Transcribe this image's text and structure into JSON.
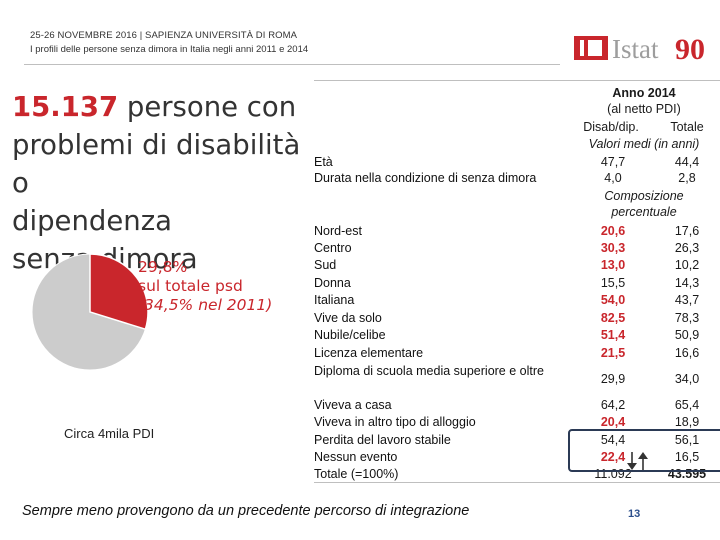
{
  "header": {
    "line1": "25-26 NOVEMBRE 2016 | SAPIENZA UNIVERSITÀ DI ROMA",
    "line2": "I profili delle persone senza dimora in Italia negli anni 2011 e 2014"
  },
  "logo": {
    "name": "Istat",
    "anniversary": "90",
    "brand_color": "#c9262c"
  },
  "title": {
    "number": "15.137",
    "line1_rest": " persone con",
    "line2": "problemi di disabilità o",
    "line3": "dipendenza",
    "line4": "senza dimora"
  },
  "pie": {
    "share_pct": 29.8,
    "label1": "29,8%",
    "label2": "sul totale psd",
    "label3": "(34,5% nel 2011)",
    "caption": "Circa  4mila PDI",
    "colors": {
      "highlight": "#c9262c",
      "rest": "#cccccc"
    }
  },
  "table": {
    "year": "Anno 2014",
    "subset": "(al netto PDI)",
    "col1": "Disab/dip.",
    "col2": "Totale",
    "section_means": "Valori medi (in anni)",
    "section_pct_1": "Composizione",
    "section_pct_2": "percentuale",
    "means": [
      {
        "label": "Età",
        "v1": "47,7",
        "v2": "44,4"
      },
      {
        "label": "Durata nella condizione di senza dimora",
        "v1": "4,0",
        "v2": "2,8"
      }
    ],
    "rows": [
      {
        "label": "Nord-est",
        "v1": "20,6",
        "v2": "17,6",
        "red": true
      },
      {
        "label": "Centro",
        "v1": "30,3",
        "v2": "26,3",
        "red": true
      },
      {
        "label": "Sud",
        "v1": "13,0",
        "v2": "10,2",
        "red": true
      },
      {
        "label": "Donna",
        "v1": "15,5",
        "v2": "14,3",
        "red": false
      },
      {
        "label": "Italiana",
        "v1": "54,0",
        "v2": "43,7",
        "red": true
      },
      {
        "label": "Vive da solo",
        "v1": "82,5",
        "v2": "78,3",
        "red": true
      },
      {
        "label": "Nubile/celibe",
        "v1": "51,4",
        "v2": "50,9",
        "red": true
      },
      {
        "label": "Licenza elementare",
        "v1": "21,5",
        "v2": "16,6",
        "red": true
      },
      {
        "label": "Diploma di scuola media superiore e oltre",
        "v1": "29,9",
        "v2": "34,0",
        "red": false
      },
      {
        "label": "Viveva a casa",
        "v1": "64,2",
        "v2": "65,4",
        "red": false
      },
      {
        "label": "Viveva in altro tipo di alloggio",
        "v1": "20,4",
        "v2": "18,9",
        "red": true
      },
      {
        "label": "Perdita del lavoro stabile",
        "v1": "54,4",
        "v2": "56,1",
        "red": false
      },
      {
        "label": "Nessun evento",
        "v1": "22,4",
        "v2": "16,5",
        "red": true
      }
    ],
    "total": {
      "label": "Totale (=100%)",
      "v1": "11.092",
      "v2": "43.595"
    }
  },
  "footer": {
    "note": "Sempre meno provengono da un precedente percorso di integrazione",
    "page": "13"
  }
}
